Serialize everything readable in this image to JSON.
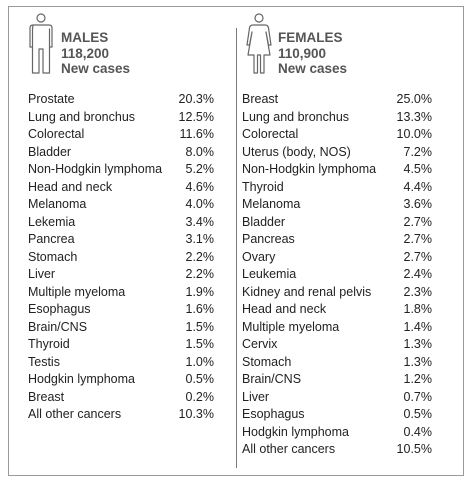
{
  "males": {
    "title": "MALES",
    "count": "118,200",
    "subtitle": "New cases",
    "rows": [
      {
        "name": "Prostate",
        "pct": "20.3%"
      },
      {
        "name": "Lung and bronchus",
        "pct": "12.5%"
      },
      {
        "name": "Colorectal",
        "pct": "11.6%"
      },
      {
        "name": "Bladder",
        "pct": "8.0%"
      },
      {
        "name": "Non-Hodgkin lymphoma",
        "pct": "5.2%"
      },
      {
        "name": "Head and neck",
        "pct": "4.6%"
      },
      {
        "name": "Melanoma",
        "pct": "4.0%"
      },
      {
        "name": "Lekemia",
        "pct": "3.4%"
      },
      {
        "name": "Pancrea",
        "pct": "3.1%"
      },
      {
        "name": "Stomach",
        "pct": "2.2%"
      },
      {
        "name": "Liver",
        "pct": "2.2%"
      },
      {
        "name": "Multiple myeloma",
        "pct": "1.9%"
      },
      {
        "name": "Esophagus",
        "pct": "1.6%"
      },
      {
        "name": "Brain/CNS",
        "pct": "1.5%"
      },
      {
        "name": "Thyroid",
        "pct": "1.5%"
      },
      {
        "name": "Testis",
        "pct": "1.0%"
      },
      {
        "name": "Hodgkin lymphoma",
        "pct": "0.5%"
      },
      {
        "name": "Breast",
        "pct": "0.2%"
      },
      {
        "name": "All other cancers",
        "pct": "10.3%"
      }
    ]
  },
  "females": {
    "title": "FEMALES",
    "count": "110,900",
    "subtitle": "New cases",
    "rows": [
      {
        "name": "Breast",
        "pct": "25.0%"
      },
      {
        "name": "Lung and bronchus",
        "pct": "13.3%"
      },
      {
        "name": "Colorectal",
        "pct": "10.0%"
      },
      {
        "name": "Uterus (body, NOS)",
        "pct": "7.2%"
      },
      {
        "name": "Non-Hodgkin lymphoma",
        "pct": "4.5%"
      },
      {
        "name": "Thyroid",
        "pct": "4.4%"
      },
      {
        "name": "Melanoma",
        "pct": "3.6%"
      },
      {
        "name": "Bladder",
        "pct": "2.7%"
      },
      {
        "name": "Pancreas",
        "pct": "2.7%"
      },
      {
        "name": "Ovary",
        "pct": "2.7%"
      },
      {
        "name": "Leukemia",
        "pct": "2.4%"
      },
      {
        "name": "Kidney and renal pelvis",
        "pct": "2.3%"
      },
      {
        "name": "Head and neck",
        "pct": "1.8%"
      },
      {
        "name": "Multiple myeloma",
        "pct": "1.4%"
      },
      {
        "name": "Cervix",
        "pct": "1.3%"
      },
      {
        "name": "Stomach",
        "pct": "1.3%"
      },
      {
        "name": "Brain/CNS",
        "pct": "1.2%"
      },
      {
        "name": "Liver",
        "pct": "0.7%"
      },
      {
        "name": "Esophagus",
        "pct": "0.5%"
      },
      {
        "name": "Hodgkin lymphoma",
        "pct": "0.4%"
      },
      {
        "name": "All other cancers",
        "pct": "10.5%"
      }
    ]
  },
  "icons": {
    "males": "male-figure-icon",
    "females": "female-figure-icon"
  }
}
